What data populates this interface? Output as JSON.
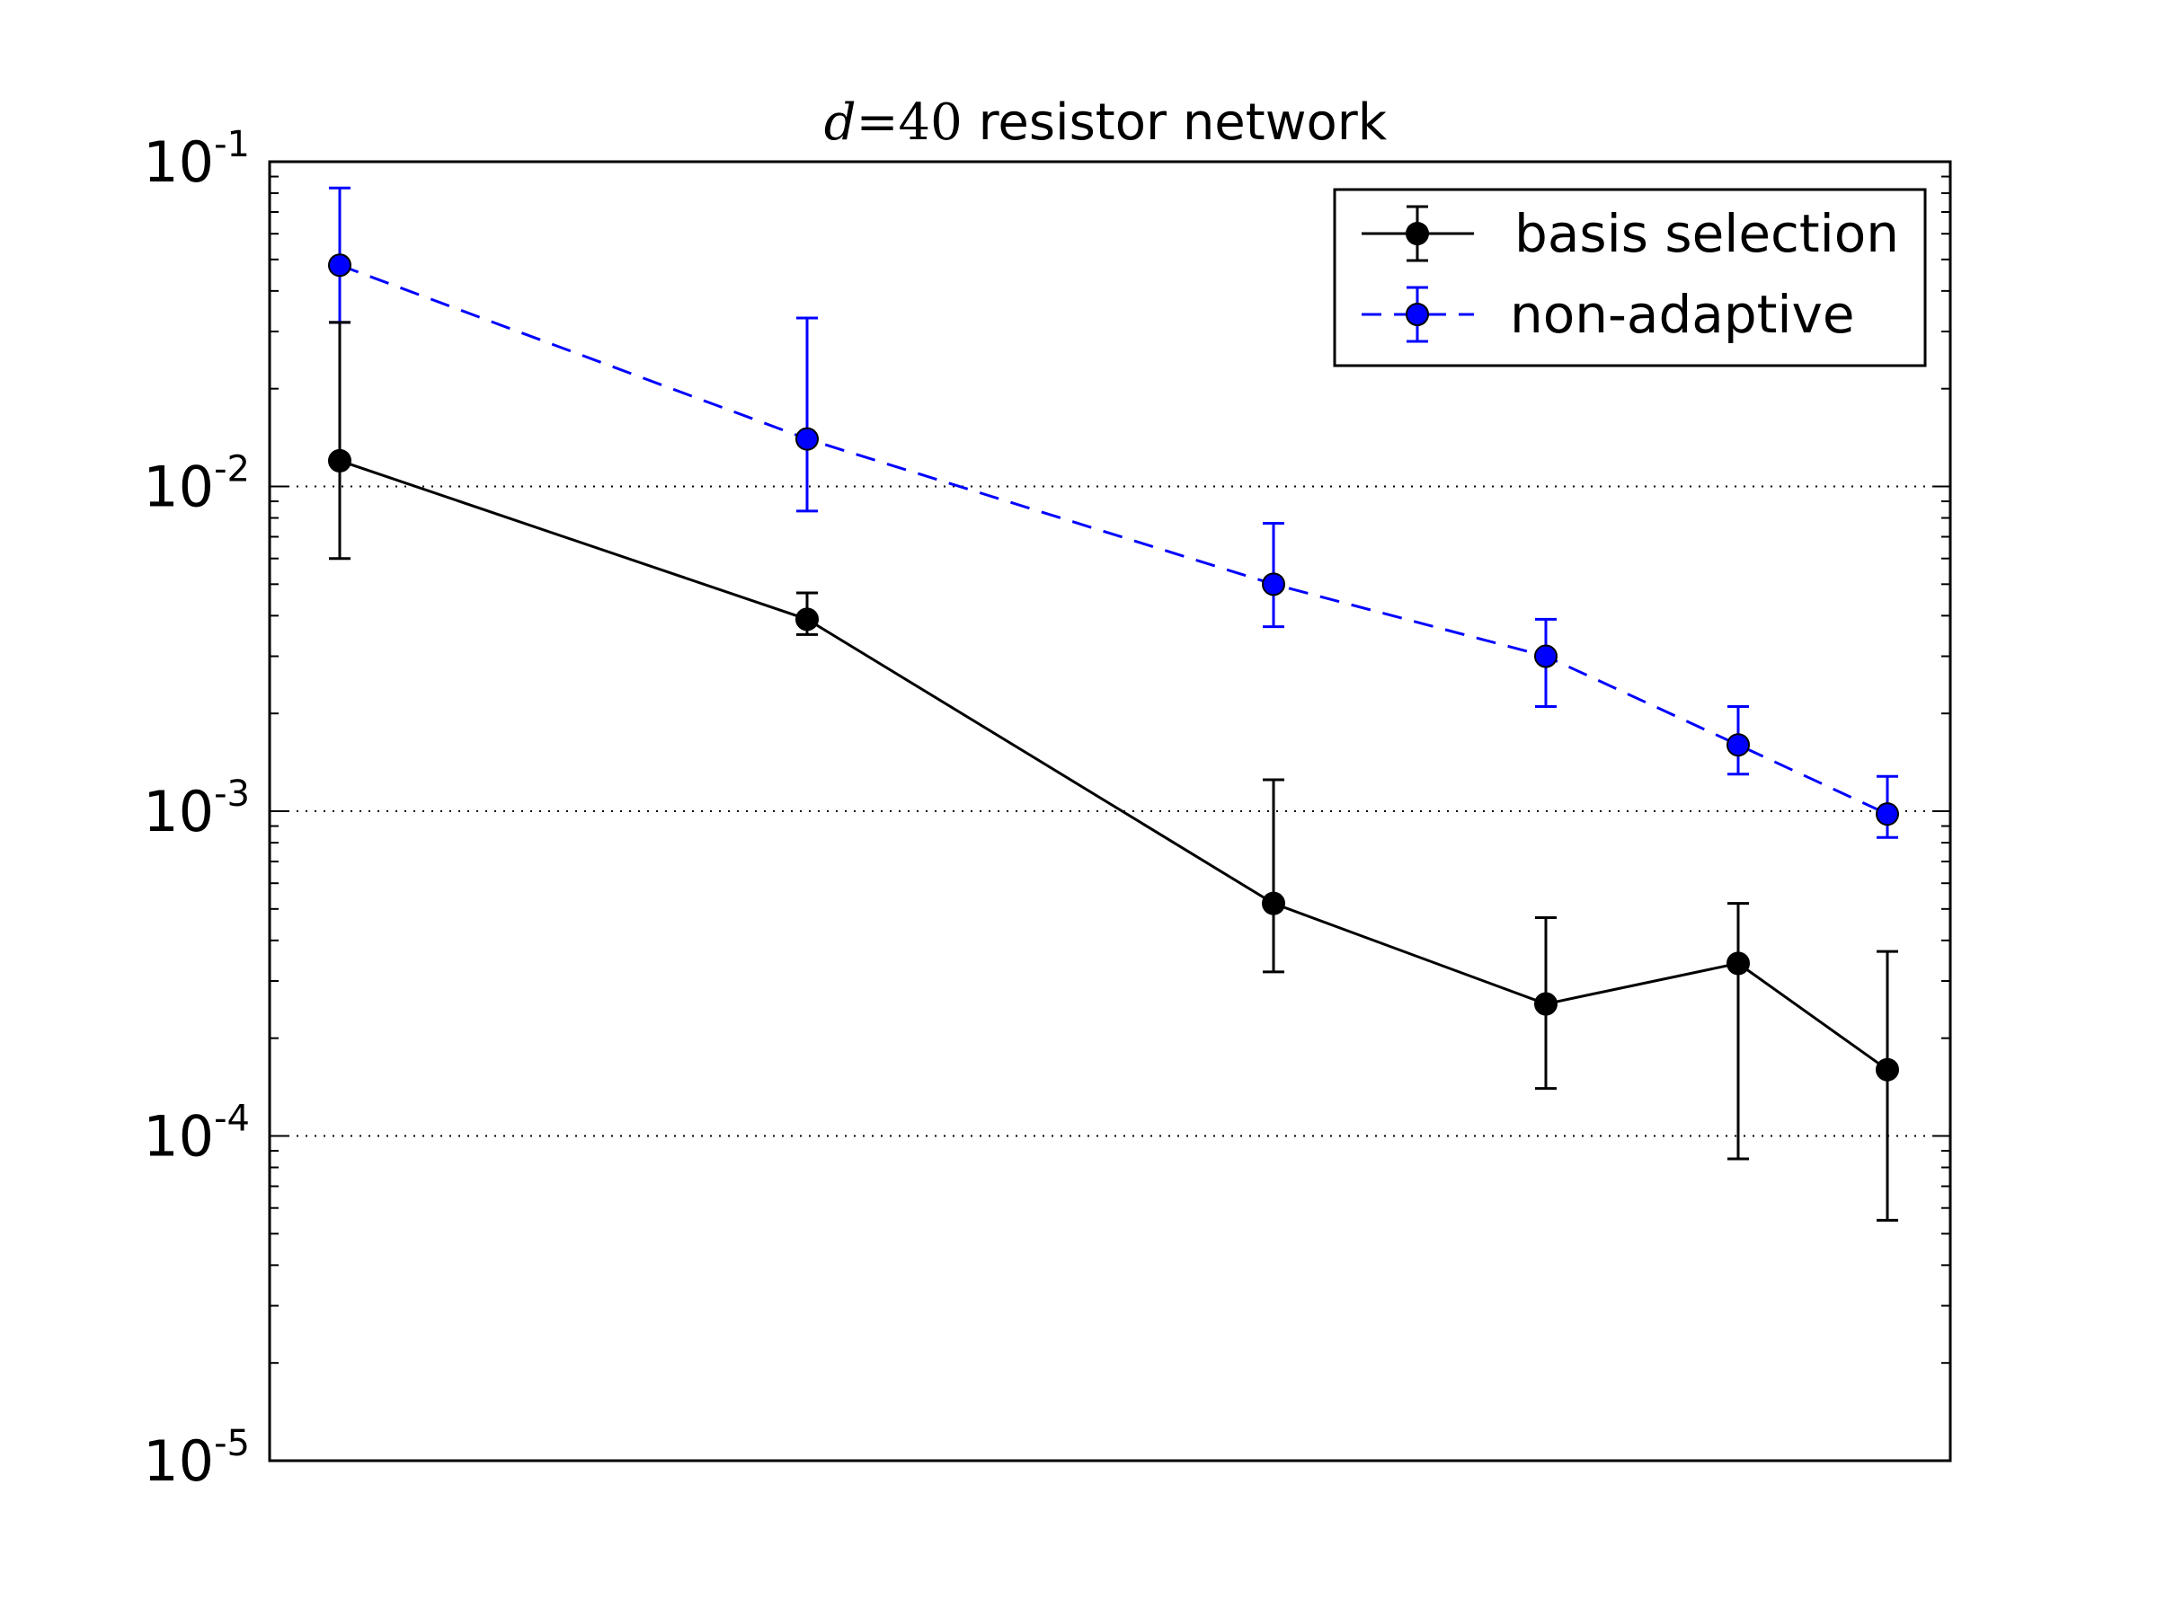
{
  "chart_data": {
    "type": "line",
    "title": {
      "math_var": "d",
      "math_eq": "=",
      "math_val": "40",
      "text": " resistor network"
    },
    "xlabel": "",
    "ylabel": "",
    "y_scale": "log",
    "ylim": [
      1e-05,
      0.1
    ],
    "y_tick_labels": [
      {
        "base": "10",
        "exp": "-5",
        "value": 1e-05
      },
      {
        "base": "10",
        "exp": "-4",
        "value": 0.0001
      },
      {
        "base": "10",
        "exp": "-3",
        "value": 0.001
      },
      {
        "base": "10",
        "exp": "-2",
        "value": 0.01
      },
      {
        "base": "10",
        "exp": "-1",
        "value": 0.1
      }
    ],
    "grid": "horizontal dotted at major y ticks",
    "legend_position": "top-right",
    "x": [
      1,
      2,
      3,
      4,
      5,
      6
    ],
    "series": [
      {
        "name": "basis selection",
        "color": "#000000",
        "linestyle": "solid",
        "x": [
          1,
          2,
          3,
          4,
          5,
          6
        ],
        "values": [
          0.012,
          0.0039,
          0.00052,
          0.000255,
          0.00034,
          0.00016
        ],
        "err_low": [
          0.006,
          0.0035,
          0.00032,
          0.00014,
          8.5e-05,
          5.5e-05
        ],
        "err_high": [
          0.032,
          0.0047,
          0.00125,
          0.00047,
          0.00052,
          0.00037
        ]
      },
      {
        "name": "non-adaptive",
        "color": "#0000ff",
        "linestyle": "dashed",
        "x": [
          1,
          2,
          3,
          4,
          5,
          6
        ],
        "values": [
          0.048,
          0.014,
          0.005,
          0.003,
          0.0016,
          0.00098
        ],
        "err_low": [
          0.032,
          0.0084,
          0.0037,
          0.0021,
          0.0013,
          0.00083
        ],
        "err_high": [
          0.083,
          0.033,
          0.0077,
          0.0039,
          0.0021,
          0.00128
        ]
      }
    ]
  }
}
